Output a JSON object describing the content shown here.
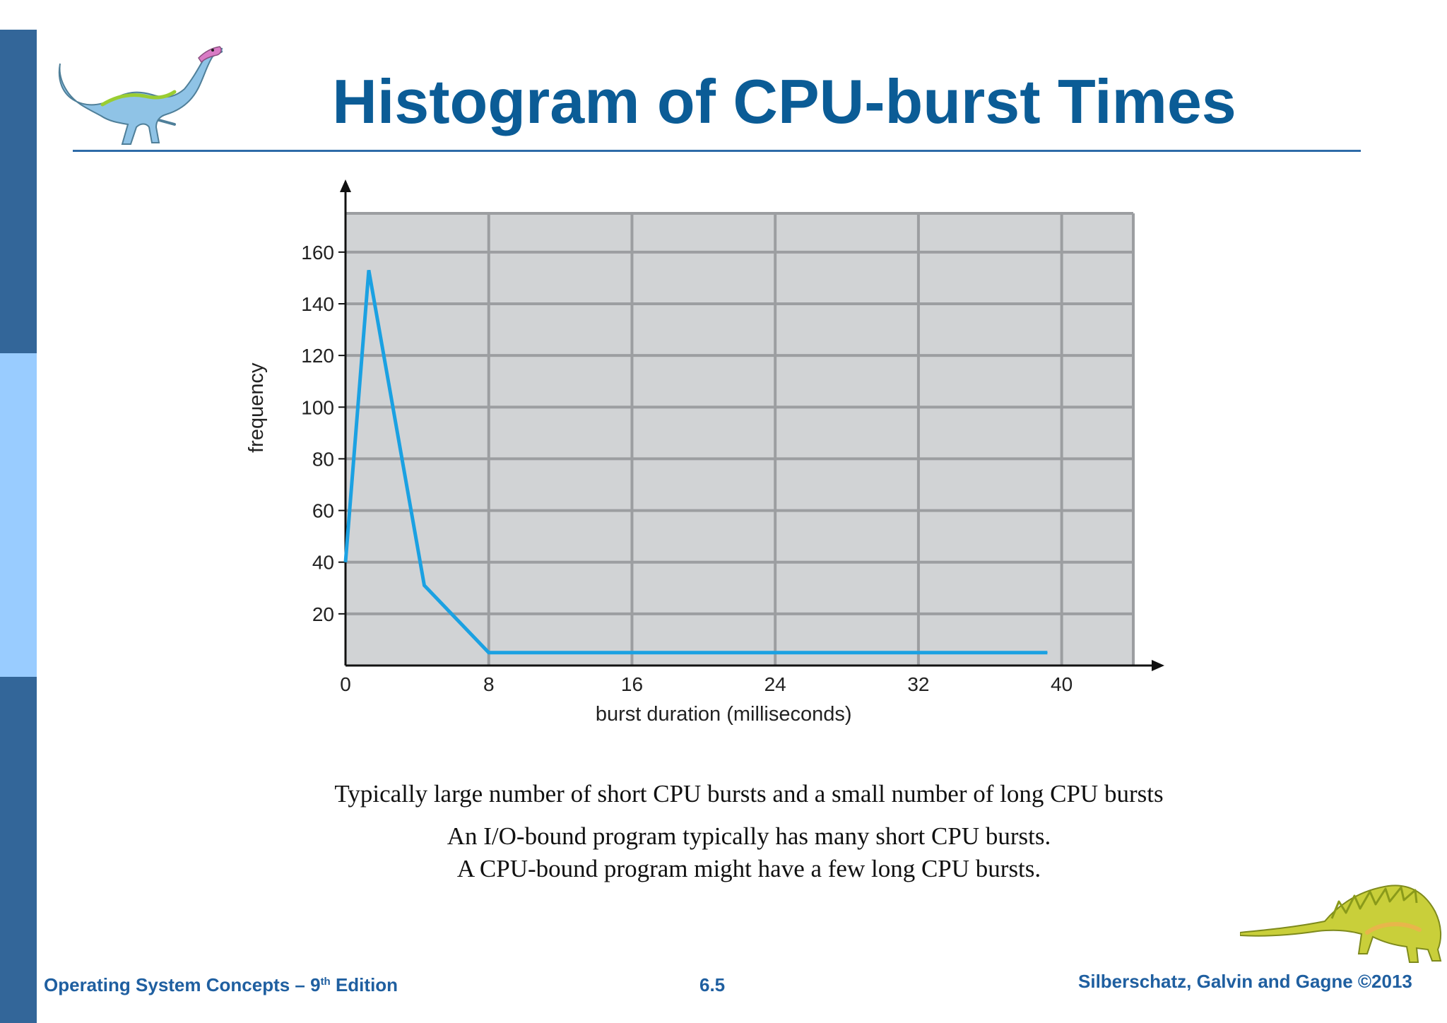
{
  "slide": {
    "title": "Histogram of CPU-burst Times",
    "captions": [
      "Typically large number of short CPU bursts and a small number of long CPU bursts",
      "An I/O-bound program typically has many short CPU bursts.",
      "A CPU-bound program might have a few long CPU bursts."
    ],
    "footer": {
      "left_prefix": "Operating System Concepts – 9",
      "left_superscript": "th",
      "left_suffix": " Edition",
      "center": "6.5",
      "right": "Silberschatz, Galvin and Gagne ©2013"
    }
  },
  "colors": {
    "accent_bar": "#336699",
    "accent_bar_light": "#99ccff",
    "title": "#0b5c96",
    "series_line": "#1ba1e2",
    "plot_background": "#d1d3d5",
    "grid": "#9c9ea1"
  },
  "icons": [
    "dinosaur-illustration-left",
    "dinosaur-illustration-right"
  ],
  "chart_data": {
    "type": "line",
    "title": "",
    "xlabel": "burst duration (milliseconds)",
    "ylabel": "frequency",
    "xlim": [
      0,
      44
    ],
    "ylim": [
      0,
      175
    ],
    "x_ticks": [
      0,
      8,
      16,
      24,
      32,
      40
    ],
    "y_ticks": [
      20,
      40,
      60,
      80,
      100,
      120,
      140,
      160
    ],
    "grid": true,
    "legend": "none",
    "series": [
      {
        "x": [
          0,
          1.3,
          4.4,
          8,
          16,
          24,
          32,
          39.2
        ],
        "y": [
          40,
          153,
          31,
          5,
          5,
          5,
          5,
          5
        ]
      }
    ]
  }
}
